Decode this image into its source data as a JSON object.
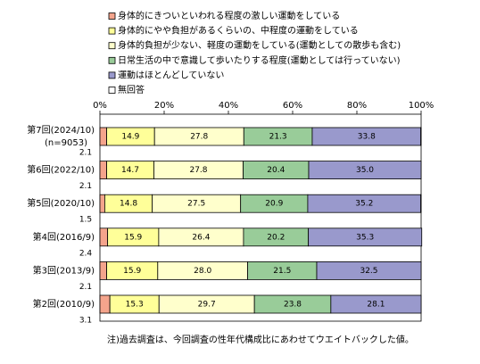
{
  "chart_data": {
    "type": "stacked-bar-horizontal",
    "categories": [
      "第7回(2024/10)",
      "第6回(2022/10)",
      "第5回(2020/10)",
      "第4回(2016/9)",
      "第3回(2013/9)",
      "第2回(2010/9)"
    ],
    "n_label": "(n=9053)",
    "series": [
      {
        "name": "身体的にきついといわれる程度の激しい運動をしている",
        "color": "#f4a48c",
        "values": [
          2.1,
          2.1,
          1.5,
          2.4,
          2.1,
          3.1
        ],
        "value_labels": [
          "2.1",
          "2.1",
          "1.5",
          "2.4",
          "2.1",
          "3.1"
        ]
      },
      {
        "name": "身体的にやや負担があるくらいの、中程度の運動をしている",
        "color": "#ffff99",
        "values": [
          14.9,
          14.7,
          14.8,
          15.9,
          15.9,
          15.3
        ],
        "value_labels": [
          "14.9",
          "14.7",
          "14.8",
          "15.9",
          "15.9",
          "15.3"
        ]
      },
      {
        "name": "身体的負担が少ない、軽度の運動をしている(運動としての散歩も含む)",
        "color": "#ffffcc",
        "values": [
          27.8,
          27.8,
          27.5,
          26.4,
          28.0,
          29.7
        ],
        "value_labels": [
          "27.8",
          "27.8",
          "27.5",
          "26.4",
          "28.0",
          "29.7"
        ]
      },
      {
        "name": "日常生活の中で意識して歩いたりする程度(運動としては行っていない)",
        "color": "#99cc99",
        "values": [
          21.3,
          20.4,
          20.9,
          20.2,
          21.5,
          23.8
        ],
        "value_labels": [
          "21.3",
          "20.4",
          "20.9",
          "20.2",
          "21.5",
          "23.8"
        ]
      },
      {
        "name": "運動はほとんどしていない",
        "color": "#9999cc",
        "values": [
          33.8,
          35.0,
          35.2,
          35.3,
          32.5,
          28.1
        ],
        "value_labels": [
          "33.8",
          "35.0",
          "35.2",
          "35.3",
          "32.5",
          "28.1"
        ]
      },
      {
        "name": "無回答",
        "color": "#ffffff",
        "values": [
          0.1,
          0,
          0.1,
          0,
          0,
          0
        ]
      }
    ],
    "xlim": [
      0,
      100
    ],
    "xticks": [
      {
        "value": 0,
        "label": "0%"
      },
      {
        "value": 20,
        "label": "20%"
      },
      {
        "value": 40,
        "label": "40%"
      },
      {
        "value": 60,
        "label": "60%"
      },
      {
        "value": 80,
        "label": "80%"
      },
      {
        "value": 100,
        "label": "100%"
      }
    ],
    "legend": "top",
    "note": "注)過去調査は、今回調査の性年代構成比にあわせてウエイトバックした値。"
  }
}
